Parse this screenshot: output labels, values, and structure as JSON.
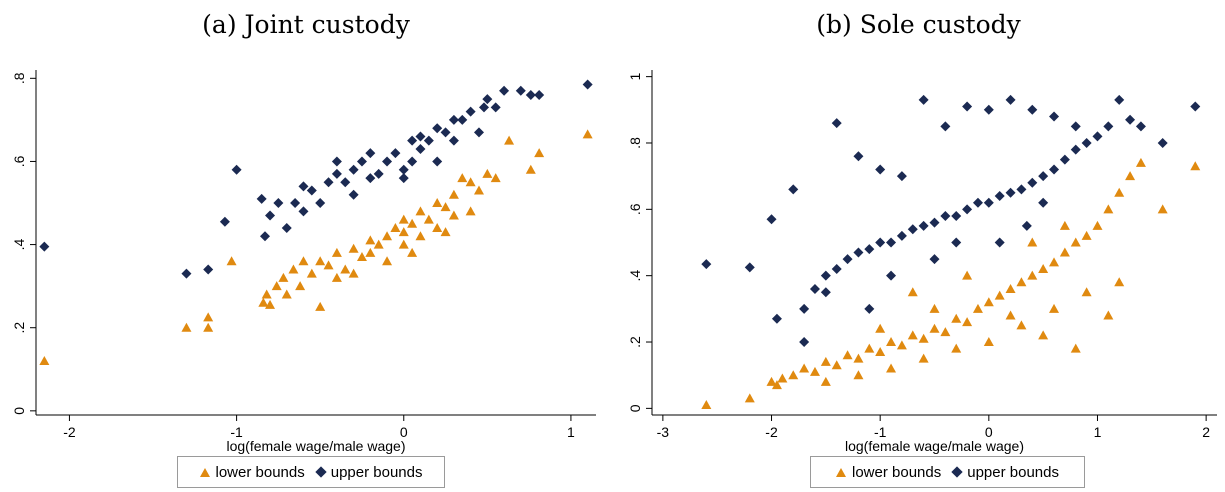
{
  "colors": {
    "lower": "#e08a10",
    "upper": "#1b2a52",
    "axis": "#000000",
    "frame": "#9a9a9a"
  },
  "chart_data": [
    {
      "type": "scatter",
      "panel": "a",
      "title": "(a) Joint custody",
      "xlabel": "log(female wage/male wage)",
      "ylabel": "",
      "xlim": [
        -2.2,
        1.15
      ],
      "ylim": [
        -0.01,
        0.82
      ],
      "xticks": [
        -2,
        -1,
        0,
        1
      ],
      "yticks": [
        0,
        0.2,
        0.4,
        0.6,
        0.8
      ],
      "ytick_labels": [
        "0",
        ".2",
        ".4",
        ".6",
        ".8"
      ],
      "legend_position": "bottom",
      "grid": false,
      "series": [
        {
          "name": "lower bounds",
          "marker": "triangle",
          "x": [
            -2.15,
            -1.3,
            -1.17,
            -1.17,
            -1.03,
            -0.84,
            -0.82,
            -0.8,
            -0.76,
            -0.72,
            -0.7,
            -0.66,
            -0.62,
            -0.55,
            -0.5,
            -0.45,
            -0.4,
            -0.35,
            -0.3,
            -0.25,
            -0.2,
            -0.15,
            -0.1,
            -0.05,
            0.0,
            0.0,
            0.05,
            0.1,
            0.15,
            0.2,
            0.25,
            0.3,
            0.35,
            0.4,
            0.45,
            0.5,
            0.55,
            0.63,
            0.76,
            0.81,
            1.1,
            -0.6,
            -0.4,
            -0.2,
            0.0,
            0.2,
            0.4,
            -0.3,
            -0.1,
            0.1,
            0.3,
            -0.5,
            0.05,
            0.25
          ],
          "y": [
            0.12,
            0.2,
            0.2,
            0.225,
            0.36,
            0.26,
            0.28,
            0.255,
            0.3,
            0.32,
            0.28,
            0.34,
            0.3,
            0.33,
            0.36,
            0.35,
            0.38,
            0.34,
            0.39,
            0.37,
            0.41,
            0.4,
            0.42,
            0.44,
            0.46,
            0.4,
            0.45,
            0.48,
            0.46,
            0.5,
            0.49,
            0.52,
            0.56,
            0.55,
            0.53,
            0.57,
            0.56,
            0.65,
            0.58,
            0.62,
            0.665,
            0.36,
            0.32,
            0.38,
            0.43,
            0.44,
            0.48,
            0.33,
            0.36,
            0.42,
            0.47,
            0.25,
            0.38,
            0.43
          ]
        },
        {
          "name": "upper bounds",
          "marker": "diamond",
          "x": [
            -2.15,
            -1.3,
            -1.17,
            -1.07,
            -1.0,
            -0.85,
            -0.83,
            -0.8,
            -0.75,
            -0.7,
            -0.65,
            -0.6,
            -0.55,
            -0.5,
            -0.45,
            -0.4,
            -0.35,
            -0.3,
            -0.25,
            -0.2,
            -0.15,
            -0.1,
            -0.05,
            0.0,
            0.05,
            0.1,
            0.15,
            0.2,
            0.25,
            0.3,
            0.35,
            0.4,
            0.45,
            0.5,
            0.55,
            0.6,
            0.7,
            0.76,
            0.81,
            1.1,
            -0.4,
            -0.2,
            0.0,
            0.2,
            -0.6,
            -0.3,
            0.1,
            0.3,
            0.48,
            0.05
          ],
          "y": [
            0.395,
            0.33,
            0.34,
            0.455,
            0.58,
            0.51,
            0.42,
            0.47,
            0.5,
            0.44,
            0.5,
            0.54,
            0.53,
            0.5,
            0.55,
            0.57,
            0.55,
            0.58,
            0.6,
            0.56,
            0.57,
            0.6,
            0.62,
            0.58,
            0.6,
            0.63,
            0.65,
            0.6,
            0.67,
            0.65,
            0.7,
            0.72,
            0.67,
            0.75,
            0.73,
            0.77,
            0.77,
            0.76,
            0.76,
            0.785,
            0.6,
            0.62,
            0.56,
            0.68,
            0.48,
            0.52,
            0.66,
            0.7,
            0.73,
            0.65
          ]
        }
      ]
    },
    {
      "type": "scatter",
      "panel": "b",
      "title": "(b) Sole custody",
      "xlabel": "log(female wage/male wage)",
      "ylabel": "",
      "xlim": [
        -3.1,
        2.1
      ],
      "ylim": [
        -0.02,
        1.02
      ],
      "xticks": [
        -3,
        -2,
        -1,
        0,
        1,
        2
      ],
      "yticks": [
        0,
        0.2,
        0.4,
        0.6,
        0.8,
        1
      ],
      "ytick_labels": [
        "0",
        ".2",
        ".4",
        ".6",
        ".8",
        "1"
      ],
      "legend_position": "bottom",
      "grid": false,
      "series": [
        {
          "name": "lower bounds",
          "marker": "triangle",
          "x": [
            -2.6,
            -2.2,
            -2.0,
            -1.95,
            -1.9,
            -1.8,
            -1.7,
            -1.6,
            -1.5,
            -1.4,
            -1.3,
            -1.2,
            -1.1,
            -1.0,
            -0.9,
            -0.8,
            -0.7,
            -0.6,
            -0.5,
            -0.4,
            -0.3,
            -0.2,
            -0.1,
            0.0,
            0.1,
            0.2,
            0.3,
            0.4,
            0.5,
            0.6,
            0.7,
            0.8,
            0.9,
            1.0,
            1.1,
            1.2,
            1.3,
            1.4,
            1.6,
            1.9,
            -1.5,
            -1.2,
            -0.9,
            -0.6,
            -0.3,
            0.0,
            0.3,
            0.6,
            0.9,
            1.2,
            -1.0,
            -0.5,
            0.2,
            0.5,
            0.8,
            1.1,
            -0.7,
            -0.2,
            0.4,
            0.7
          ],
          "y": [
            0.01,
            0.03,
            0.08,
            0.07,
            0.09,
            0.1,
            0.12,
            0.11,
            0.14,
            0.13,
            0.16,
            0.15,
            0.18,
            0.17,
            0.2,
            0.19,
            0.22,
            0.21,
            0.24,
            0.23,
            0.27,
            0.26,
            0.3,
            0.32,
            0.34,
            0.36,
            0.38,
            0.4,
            0.42,
            0.44,
            0.47,
            0.5,
            0.52,
            0.55,
            0.6,
            0.65,
            0.7,
            0.74,
            0.6,
            0.73,
            0.08,
            0.1,
            0.12,
            0.15,
            0.18,
            0.2,
            0.25,
            0.3,
            0.35,
            0.38,
            0.24,
            0.3,
            0.28,
            0.22,
            0.18,
            0.28,
            0.35,
            0.4,
            0.5,
            0.55
          ]
        },
        {
          "name": "upper bounds",
          "marker": "diamond",
          "x": [
            -2.6,
            -2.2,
            -2.0,
            -1.95,
            -1.8,
            -1.7,
            -1.6,
            -1.5,
            -1.4,
            -1.3,
            -1.2,
            -1.1,
            -1.0,
            -0.9,
            -0.8,
            -0.7,
            -0.6,
            -0.5,
            -0.4,
            -0.3,
            -0.2,
            -0.1,
            0.0,
            0.1,
            0.2,
            0.3,
            0.4,
            0.5,
            0.6,
            0.7,
            0.8,
            0.9,
            1.0,
            1.1,
            1.2,
            1.3,
            1.4,
            1.6,
            1.9,
            -1.4,
            -1.2,
            -1.0,
            -0.8,
            -0.6,
            -0.4,
            -0.2,
            0.0,
            0.2,
            0.4,
            0.6,
            0.8,
            -0.5,
            0.1,
            0.35,
            -1.5,
            -0.9,
            -0.3,
            0.5,
            -1.7,
            -1.1
          ],
          "y": [
            0.435,
            0.425,
            0.57,
            0.27,
            0.66,
            0.3,
            0.36,
            0.4,
            0.42,
            0.45,
            0.47,
            0.48,
            0.5,
            0.5,
            0.52,
            0.54,
            0.55,
            0.56,
            0.58,
            0.58,
            0.6,
            0.62,
            0.62,
            0.64,
            0.65,
            0.66,
            0.68,
            0.7,
            0.72,
            0.75,
            0.78,
            0.8,
            0.82,
            0.85,
            0.93,
            0.87,
            0.85,
            0.8,
            0.91,
            0.86,
            0.76,
            0.72,
            0.7,
            0.93,
            0.85,
            0.91,
            0.9,
            0.93,
            0.9,
            0.88,
            0.85,
            0.45,
            0.5,
            0.55,
            0.35,
            0.4,
            0.5,
            0.62,
            0.2,
            0.3
          ]
        }
      ]
    }
  ]
}
